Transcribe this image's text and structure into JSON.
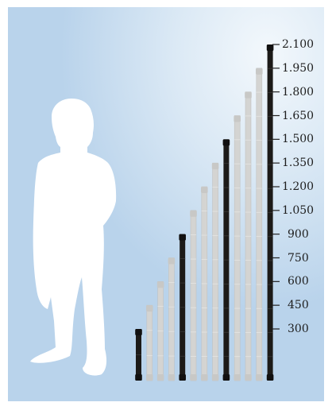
{
  "scale_labels": [
    "2.100",
    "1.950",
    "1.800",
    "1.650",
    "1.500",
    "1.350",
    "1.200",
    "1.050",
    "900",
    "750",
    "600",
    "450",
    "300"
  ],
  "rod_lengths": [
    300,
    450,
    600,
    750,
    900,
    1050,
    1200,
    1350,
    1500,
    1650,
    1800,
    1950,
    2100
  ],
  "highlighted_rods": [
    300,
    900,
    1500,
    2100
  ],
  "colors": {
    "rod_dark": "#1c1a18",
    "rod_light": "#d4d4d2",
    "silhouette": "#ffffff",
    "tick": "#222222"
  }
}
